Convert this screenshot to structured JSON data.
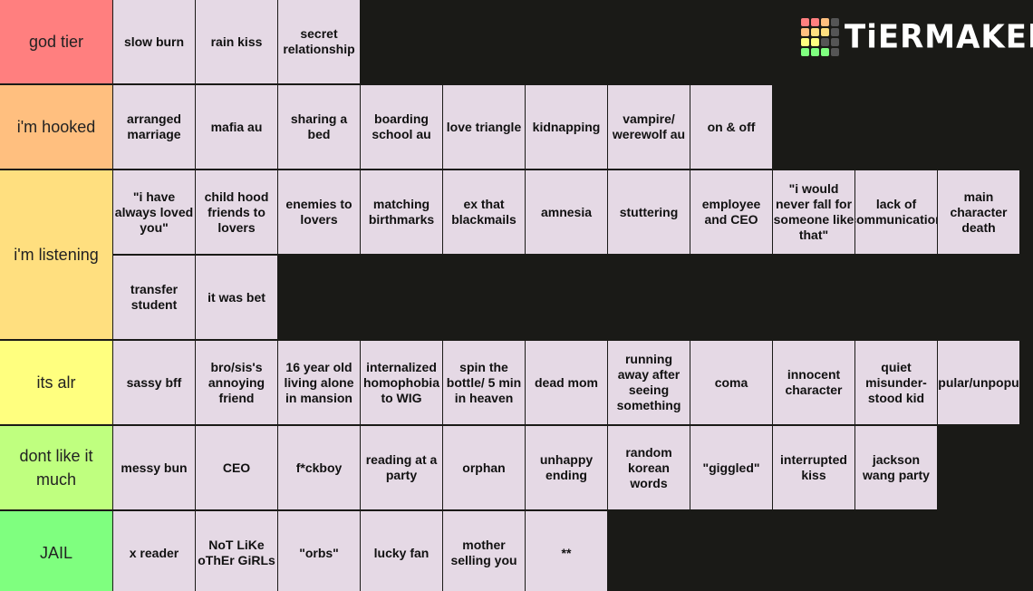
{
  "logo": "TiERMAKER",
  "tiers": [
    {
      "label": "god tier",
      "color": "#ff7f7f",
      "items": [
        "slow burn",
        "rain kiss",
        "secret relationship"
      ]
    },
    {
      "label": "i'm hooked",
      "color": "#ffbf7f",
      "items": [
        "arranged marriage",
        "mafia au",
        "sharing a bed",
        "boarding school au",
        "love triangle",
        "kidnapping",
        "vampire/ werewolf au",
        "on & off"
      ]
    },
    {
      "label": "i'm listening",
      "color": "#ffdf7f",
      "items": [
        "\"i have always loved you\"",
        "child hood friends to lovers",
        "enemies to lovers",
        "matching birthmarks",
        "ex that blackmails",
        "amnesia",
        "stuttering",
        "employee and CEO",
        "\"i would never fall for someone like that\"",
        "lack of communication",
        "main character death",
        "transfer student",
        "it was bet"
      ]
    },
    {
      "label": "its alr",
      "color": "#ffff7f",
      "items": [
        "sassy bff",
        "bro/sis's annoying friend",
        "16 year old living alone in mansion",
        "internalized homophobia to WIG",
        "spin the bottle/ 5 min in heaven",
        "dead mom",
        "running away after seeing something",
        "coma",
        "innocent character",
        "quiet misunder-stood kid",
        "popular/unpopular"
      ]
    },
    {
      "label": "dont like it much",
      "color": "#bfff7f",
      "items": [
        "messy bun",
        "CEO",
        "f*ckboy",
        "reading at a party",
        "orphan",
        "unhappy ending",
        "random korean words",
        "\"giggled\"",
        "interrupted kiss",
        "jackson wang party"
      ]
    },
    {
      "label": "JAIL",
      "color": "#7fff7f",
      "items": [
        "x reader",
        "NoT LiKe oThEr GiRLs",
        "\"orbs\"",
        "lucky fan",
        "mother selling you",
        "**"
      ]
    }
  ]
}
